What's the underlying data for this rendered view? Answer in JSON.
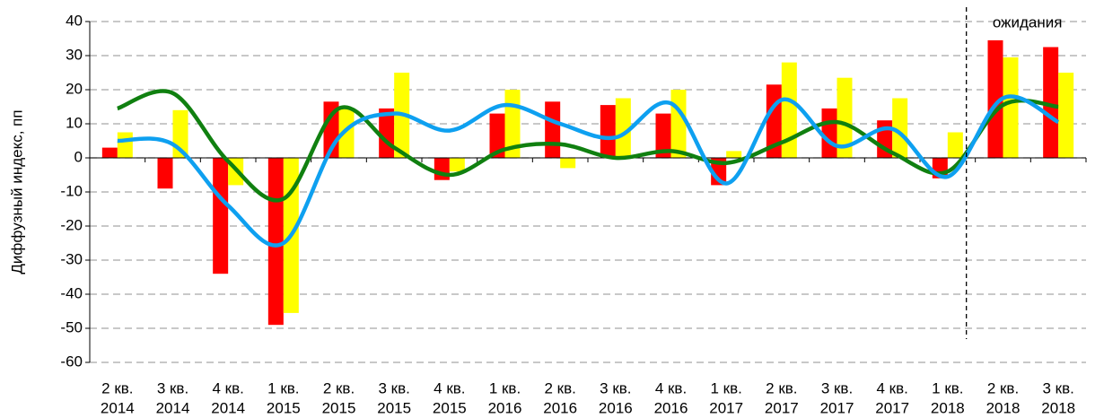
{
  "chart_data": {
    "type": "bar_line",
    "y_label": "Диффузный индекс, пп",
    "annotation": "ожидания",
    "categories": [
      [
        "2 кв.",
        "2014"
      ],
      [
        "3 кв.",
        "2014"
      ],
      [
        "4 кв.",
        "2014"
      ],
      [
        "1 кв.",
        "2015"
      ],
      [
        "2 кв.",
        "2015"
      ],
      [
        "3 кв.",
        "2015"
      ],
      [
        "4 кв.",
        "2015"
      ],
      [
        "1 кв.",
        "2016"
      ],
      [
        "2 кв.",
        "2016"
      ],
      [
        "3 кв.",
        "2016"
      ],
      [
        "4 кв.",
        "2016"
      ],
      [
        "1 кв.",
        "2017"
      ],
      [
        "2 кв.",
        "2017"
      ],
      [
        "3 кв.",
        "2017"
      ],
      [
        "4 кв.",
        "2017"
      ],
      [
        "1 кв.",
        "2018"
      ],
      [
        "2 кв.",
        "2018"
      ],
      [
        "3 кв.",
        "2018"
      ]
    ],
    "series": [
      {
        "type": "bar",
        "color": "#ff0000",
        "values": [
          3,
          -9,
          -34,
          -49,
          16.5,
          14.5,
          -6.5,
          13,
          16.5,
          15.5,
          13,
          -8,
          21.5,
          14.5,
          11,
          -6,
          34.5,
          32.5
        ]
      },
      {
        "type": "bar",
        "color": "#ffff00",
        "values": [
          7.5,
          14,
          -8,
          -45.5,
          14.5,
          25,
          -4,
          20,
          -3,
          17.5,
          20,
          2,
          28,
          23.5,
          17.5,
          7.5,
          29.5,
          25
        ]
      },
      {
        "type": "line",
        "color": "#108010",
        "values": [
          14.5,
          19,
          -1,
          -12,
          14.5,
          3,
          -5,
          2.5,
          4,
          0,
          2,
          -1.5,
          4.5,
          10.5,
          1.5,
          -4,
          15.5,
          15
        ]
      },
      {
        "type": "line",
        "color": "#0ea0f0",
        "values": [
          5,
          4,
          -14,
          -25,
          6,
          13,
          8,
          15.5,
          10,
          6,
          16,
          -7.5,
          17,
          3.5,
          8.5,
          -5.5,
          17.5,
          10.5
        ]
      }
    ],
    "ylim": [
      -60,
      40
    ],
    "yticks": [
      -60,
      -50,
      -40,
      -30,
      -20,
      -10,
      0,
      10,
      20,
      30,
      40
    ],
    "grid": true
  }
}
